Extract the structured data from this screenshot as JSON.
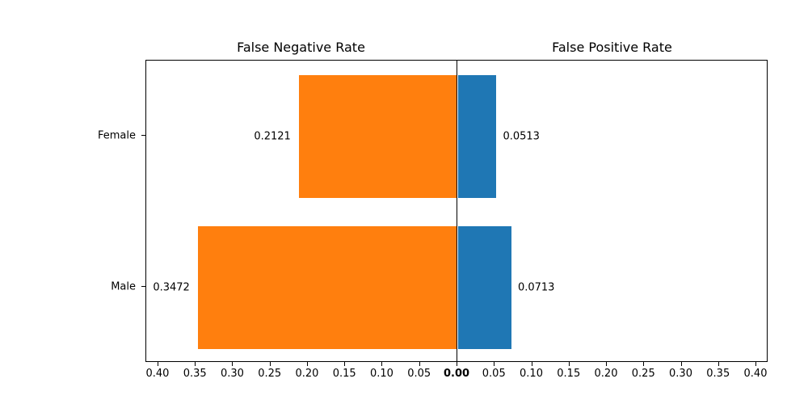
{
  "chart_data": {
    "type": "bar",
    "variant": "diverging-horizontal",
    "titles": {
      "left": "False Negative Rate",
      "right": "False Positive Rate"
    },
    "categories": [
      "Female",
      "Male"
    ],
    "series": [
      {
        "name": "False Negative Rate",
        "side": "left",
        "color": "#ff7f0e",
        "values": [
          0.2121,
          0.3472
        ],
        "labels": [
          "0.2121",
          "0.3472"
        ]
      },
      {
        "name": "False Positive Rate",
        "side": "right",
        "color": "#1f77b4",
        "values": [
          0.0513,
          0.0713
        ],
        "labels": [
          "0.0513",
          "0.0713"
        ]
      }
    ],
    "x_ticks_left": [
      "0.40",
      "0.35",
      "0.30",
      "0.25",
      "0.20",
      "0.15",
      "0.10",
      "0.05"
    ],
    "x_center_tick": "0.00",
    "x_ticks_right": [
      "0.05",
      "0.10",
      "0.15",
      "0.20",
      "0.25",
      "0.30",
      "0.35",
      "0.40"
    ],
    "axis": {
      "x_max_each_side": 0.4162,
      "tick_step": 0.05,
      "center_value": 0.0,
      "grid": false
    },
    "text_color": "#000000",
    "background": "#ffffff"
  }
}
